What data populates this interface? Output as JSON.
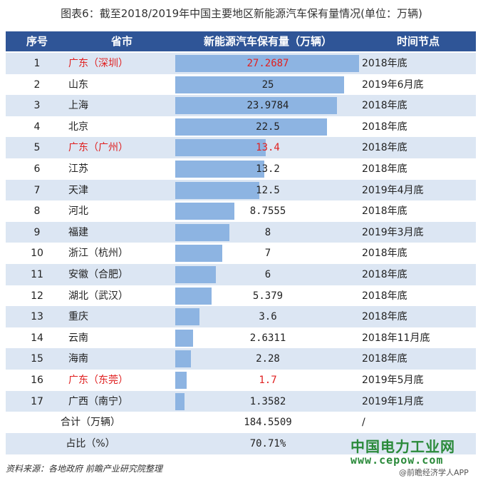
{
  "title": "图表6：截至2018/2019年中国主要地区新能源汽车保有量情况(单位：万辆)",
  "headers": [
    "序号",
    "省市",
    "新能源汽车保有量（万辆）",
    "时间节点"
  ],
  "chart_data": {
    "type": "table",
    "columns": [
      "序号",
      "省市",
      "新能源汽车保有量（万辆）",
      "时间节点"
    ],
    "rows": [
      {
        "idx": "1",
        "region": "广东（深圳）",
        "value": 27.2687,
        "value_text": "27.2687",
        "time": "2018年底",
        "highlight": true
      },
      {
        "idx": "2",
        "region": "山东",
        "value": 25,
        "value_text": "25",
        "time": "2019年6月底",
        "highlight": false
      },
      {
        "idx": "3",
        "region": "上海",
        "value": 23.9784,
        "value_text": "23.9784",
        "time": "2018年底",
        "highlight": false
      },
      {
        "idx": "4",
        "region": "北京",
        "value": 22.5,
        "value_text": "22.5",
        "time": "2018年底",
        "highlight": false
      },
      {
        "idx": "5",
        "region": "广东（广州）",
        "value": 13.4,
        "value_text": "13.4",
        "time": "2018年底",
        "highlight": true
      },
      {
        "idx": "6",
        "region": "江苏",
        "value": 13.2,
        "value_text": "13.2",
        "time": "2018年底",
        "highlight": false
      },
      {
        "idx": "7",
        "region": "天津",
        "value": 12.5,
        "value_text": "12.5",
        "time": "2019年4月底",
        "highlight": false
      },
      {
        "idx": "8",
        "region": "河北",
        "value": 8.7555,
        "value_text": "8.7555",
        "time": "2018年底",
        "highlight": false
      },
      {
        "idx": "9",
        "region": "福建",
        "value": 8,
        "value_text": "8",
        "time": "2019年3月底",
        "highlight": false
      },
      {
        "idx": "10",
        "region": "浙江（杭州）",
        "value": 7,
        "value_text": "7",
        "time": "2018年底",
        "highlight": false
      },
      {
        "idx": "11",
        "region": "安徽（合肥）",
        "value": 6,
        "value_text": "6",
        "time": "2018年底",
        "highlight": false
      },
      {
        "idx": "12",
        "region": "湖北（武汉）",
        "value": 5.379,
        "value_text": "5.379",
        "time": "2018年底",
        "highlight": false
      },
      {
        "idx": "13",
        "region": "重庆",
        "value": 3.6,
        "value_text": "3.6",
        "time": "2018年底",
        "highlight": false
      },
      {
        "idx": "14",
        "region": "云南",
        "value": 2.6311,
        "value_text": "2.6311",
        "time": "2018年11月底",
        "highlight": false
      },
      {
        "idx": "15",
        "region": "海南",
        "value": 2.28,
        "value_text": "2.28",
        "time": "2018年底",
        "highlight": false
      },
      {
        "idx": "16",
        "region": "广东（东莞）",
        "value": 1.7,
        "value_text": "1.7",
        "time": "2019年5月底",
        "highlight": true
      },
      {
        "idx": "17",
        "region": "广西（南宁）",
        "value": 1.3582,
        "value_text": "1.3582",
        "time": "2019年1月底",
        "highlight": false
      }
    ],
    "bar_max": 27.2687
  },
  "summary": {
    "total_label": "合计（万辆）",
    "total_value": "184.5509",
    "total_time": "/",
    "share_label": "占比（%）",
    "share_value": "70.71%"
  },
  "source": "资料来源：各地政府 前瞻产业研究院整理",
  "watermark": {
    "line1": "中国电力工业网",
    "line2": "www.cepow.com",
    "line3": "@前瞻经济学人APP"
  },
  "colors": {
    "header_bg": "#2f5597",
    "bar": "#8db4e2",
    "stripe": "#dce6f3",
    "highlight_text": "#e02020"
  }
}
